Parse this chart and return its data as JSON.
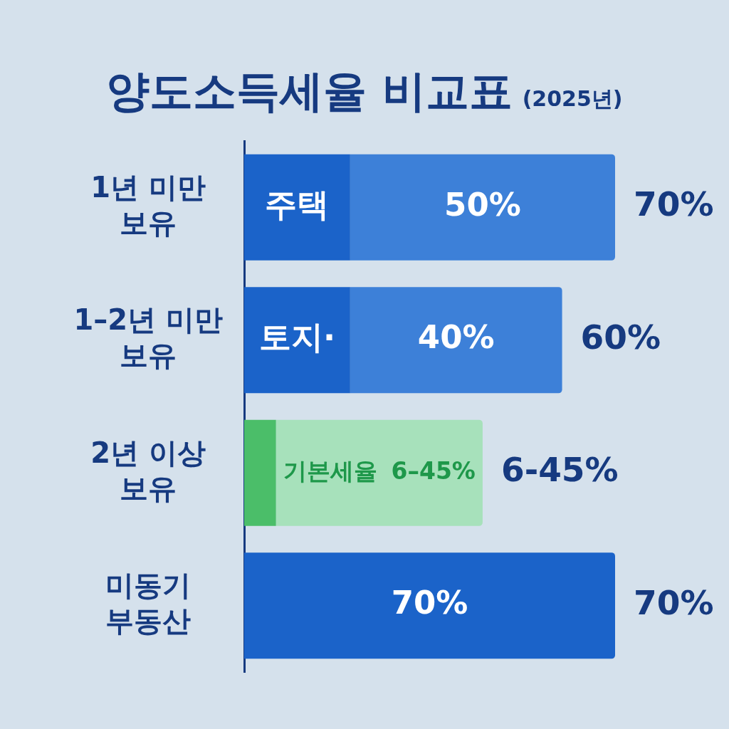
{
  "chart_data": {
    "type": "bar",
    "title": "양도소득세율 비교표",
    "subtitle": "(2025년)",
    "orientation": "horizontal",
    "stacked": true,
    "categories": [
      "1년 미만 보유",
      "1–2년 미만 보유",
      "2년 이상 보유",
      "미동기 부동산"
    ],
    "series": [
      {
        "colors": [
          "#1b63c9",
          "#1b63c9",
          "#4bbe69",
          "#1b63c9"
        ],
        "values": [
          20,
          20,
          6,
          70
        ],
        "value_labels": [
          "주택",
          "토지·",
          "기본세율",
          "70%"
        ]
      },
      {
        "colors": [
          "#3d80d8",
          "#3d80d8",
          "#a7e1bb",
          "#3d80d8"
        ],
        "values": [
          50,
          40,
          39,
          null
        ],
        "value_labels": [
          "50%",
          "40%",
          null,
          null
        ]
      }
    ],
    "totals": [
      "70%",
      "60%",
      "6-45%",
      "70%"
    ],
    "annotations": [
      {
        "text": "6–45%",
        "x": 45,
        "y": "2년 이상 보유"
      }
    ]
  }
}
